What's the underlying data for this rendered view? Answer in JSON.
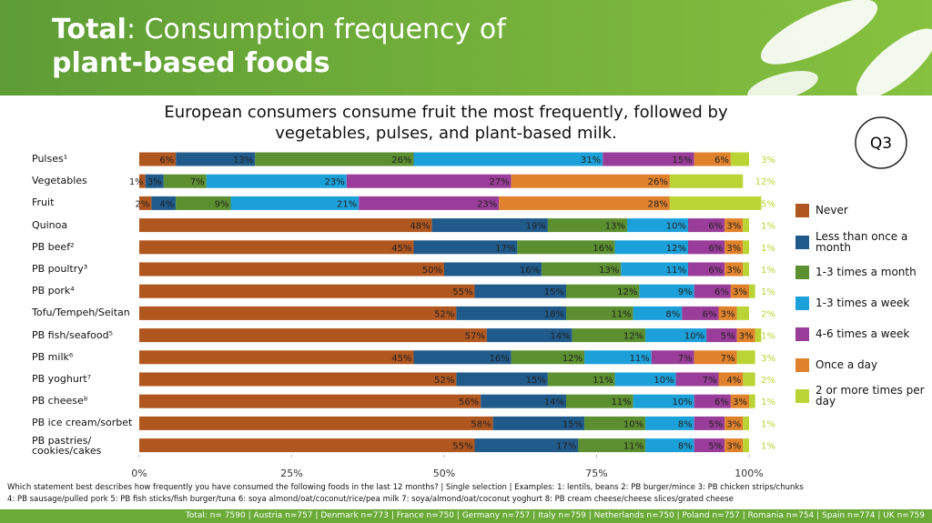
{
  "header": {
    "title_bold": "Total",
    "title_rest": ": Consumption frequency of",
    "title_line2": "plant-based foods",
    "badge": "Q3"
  },
  "chart_data": {
    "type": "stacked-bar-horizontal",
    "title": "European consumers consume fruit the most frequently, followed by vegetables, pulses, and plant-based milk.",
    "categories": [
      "Pulses¹",
      "Vegetables",
      "Fruit",
      "Quinoa",
      "PB beef²",
      "PB poultry³",
      "PB pork⁴",
      "Tofu/Tempeh/Seitan",
      "PB fish/seafood⁵",
      "PB milk⁶",
      "PB yoghurt⁷",
      "PB cheese⁸",
      "PB ice cream/sorbet",
      "PB pastries/ cookies/cakes"
    ],
    "xlim": [
      0,
      100
    ],
    "xticks": [
      {
        "value": 0,
        "label": "0%"
      },
      {
        "value": 25,
        "label": "25%"
      },
      {
        "value": 50,
        "label": "50%"
      },
      {
        "value": 75,
        "label": "75%"
      },
      {
        "value": 100,
        "label": "100%"
      }
    ],
    "series": [
      {
        "name": "Never",
        "color": "#b0561f",
        "values": [
          6,
          1,
          2,
          48,
          45,
          50,
          55,
          52,
          57,
          45,
          52,
          56,
          58,
          55
        ],
        "value_labels": [
          "6%",
          "1%",
          "2%",
          "48%",
          "45%",
          "50%",
          "55%",
          "52%",
          "57%",
          "45%",
          "52%",
          "56%",
          "58%",
          "55%"
        ]
      },
      {
        "name": "Less than once a month",
        "color": "#1f5a8b",
        "values": [
          13,
          3,
          4,
          19,
          17,
          16,
          15,
          18,
          14,
          16,
          15,
          14,
          15,
          17
        ],
        "value_labels": [
          "13%",
          "3%",
          "4%",
          "19%",
          "17%",
          "16%",
          "15%",
          "18%",
          "14%",
          "16%",
          "15%",
          "14%",
          "15%",
          "17%"
        ]
      },
      {
        "name": "1-3 times a month",
        "color": "#5b8f2f",
        "values": [
          26,
          7,
          9,
          13,
          16,
          13,
          12,
          11,
          12,
          12,
          11,
          11,
          10,
          11
        ],
        "value_labels": [
          "26%",
          "7%",
          "9%",
          "13%",
          "16%",
          "13%",
          "12%",
          "11%",
          "12%",
          "12%",
          "11%",
          "11%",
          "10%",
          "11%"
        ]
      },
      {
        "name": "1-3 times a week",
        "color": "#1ca0d9",
        "values": [
          31,
          23,
          21,
          10,
          12,
          11,
          9,
          8,
          10,
          11,
          10,
          10,
          8,
          8
        ],
        "value_labels": [
          "31%",
          "23%",
          "21%",
          "10%",
          "12%",
          "11%",
          "9%",
          "8%",
          "10%",
          "11%",
          "10%",
          "10%",
          "8%",
          "8%"
        ]
      },
      {
        "name": "4-6 times a week",
        "color": "#9a3c99",
        "values": [
          15,
          27,
          23,
          6,
          6,
          6,
          6,
          6,
          5,
          7,
          7,
          6,
          5,
          5
        ],
        "value_labels": [
          "15%",
          "27%",
          "23%",
          "6%",
          "6%",
          "6%",
          "6%",
          "6%",
          "5%",
          "7%",
          "7%",
          "6%",
          "5%",
          "5%"
        ]
      },
      {
        "name": "Once a day",
        "color": "#e0822b",
        "values": [
          6,
          26,
          28,
          3,
          3,
          3,
          3,
          3,
          3,
          7,
          4,
          3,
          3,
          3
        ],
        "value_labels": [
          "6%",
          "26%",
          "28%",
          "3%",
          "3%",
          "3%",
          "3%",
          "3%",
          "3%",
          "7%",
          "4%",
          "3%",
          "3%",
          "3%"
        ]
      },
      {
        "name": "2 or more times per day",
        "color": "#b9d434",
        "values": [
          3,
          12,
          15,
          1,
          1,
          1,
          1,
          2,
          1,
          3,
          2,
          1,
          1,
          1
        ],
        "value_labels": [
          "3%",
          "12%",
          "15%",
          "1%",
          "1%",
          "1%",
          "1%",
          "2%",
          "1%",
          "3%",
          "2%",
          "1%",
          "1%",
          "1%"
        ]
      }
    ]
  },
  "notes": {
    "line1": "Which statement best describes how frequently you have consumed the following foods in the last 12 months? | Single selection | Examples: 1: lentils, beans 2: PB burger/mince 3: PB chicken strips/chunks",
    "line2": "4: PB sausage/pulled pork 5: PB fish sticks/fish burger/tuna 6: soya almond/oat/coconut/rice/pea milk 7: soya/almond/oat/coconut yoghurt 8: PB cream cheese/cheese slices/grated cheese",
    "sample": "Total: n= 7590 | Austria n=757 | Denmark n=773 | France n=750 | Germany n=757 | Italy n=759 | Netherlands n=750 | Poland n=757 | Romania n=754 | Spain n=774 | UK n=759"
  }
}
